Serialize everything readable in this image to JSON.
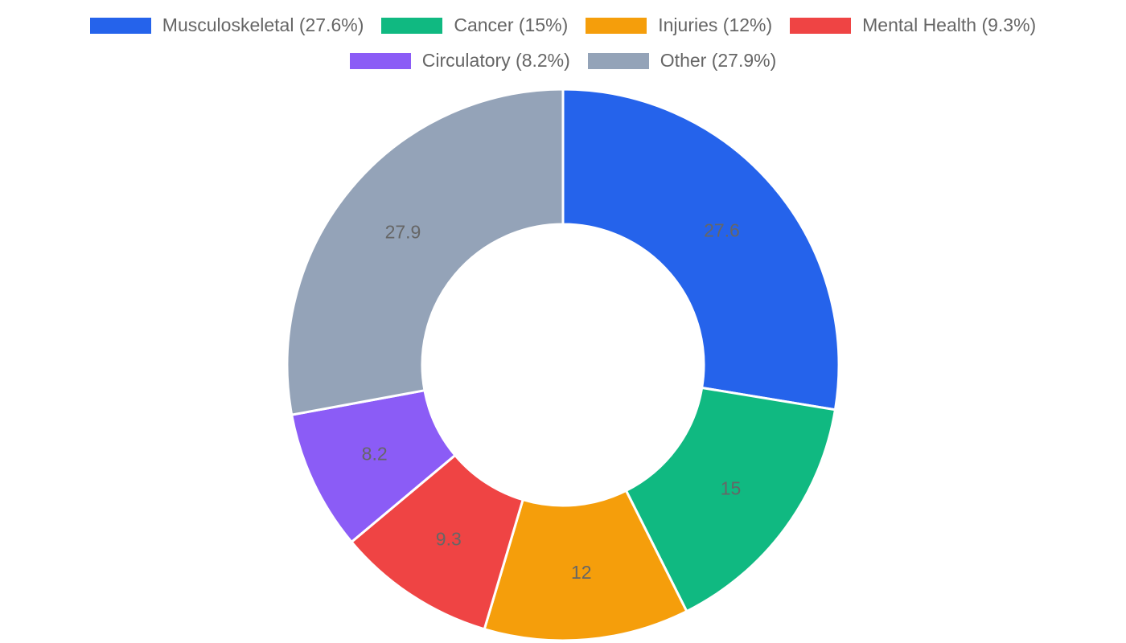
{
  "chart_data": {
    "type": "pie",
    "variant": "doughnut",
    "title": "",
    "categories": [
      "Musculoskeletal",
      "Cancer",
      "Injuries",
      "Mental Health",
      "Circulatory",
      "Other"
    ],
    "values": [
      27.6,
      15,
      12,
      9.3,
      8.2,
      27.9
    ],
    "colors": [
      "#2563eb",
      "#10b981",
      "#f59e0b",
      "#ef4444",
      "#8b5cf6",
      "#94a3b8"
    ],
    "legend_labels": [
      "Musculoskeletal (27.6%)",
      "Cancer (15%)",
      "Injuries (12%)",
      "Mental Health (9.3%)",
      "Circulatory (8.2%)",
      "Other (27.9%)"
    ],
    "slice_labels": [
      "27.6",
      "15",
      "12",
      "9.3",
      "8.2",
      "27.9"
    ],
    "legend_position": "top",
    "start_angle": "12 o'clock, clockwise",
    "units": "%"
  },
  "legend": {
    "items": [
      {
        "label": "Musculoskeletal (27.6%)",
        "color": "#2563eb"
      },
      {
        "label": "Cancer (15%)",
        "color": "#10b981"
      },
      {
        "label": "Injuries (12%)",
        "color": "#f59e0b"
      },
      {
        "label": "Mental Health (9.3%)",
        "color": "#ef4444"
      },
      {
        "label": "Circulatory (8.2%)",
        "color": "#8b5cf6"
      },
      {
        "label": "Other (27.9%)",
        "color": "#94a3b8"
      }
    ]
  }
}
